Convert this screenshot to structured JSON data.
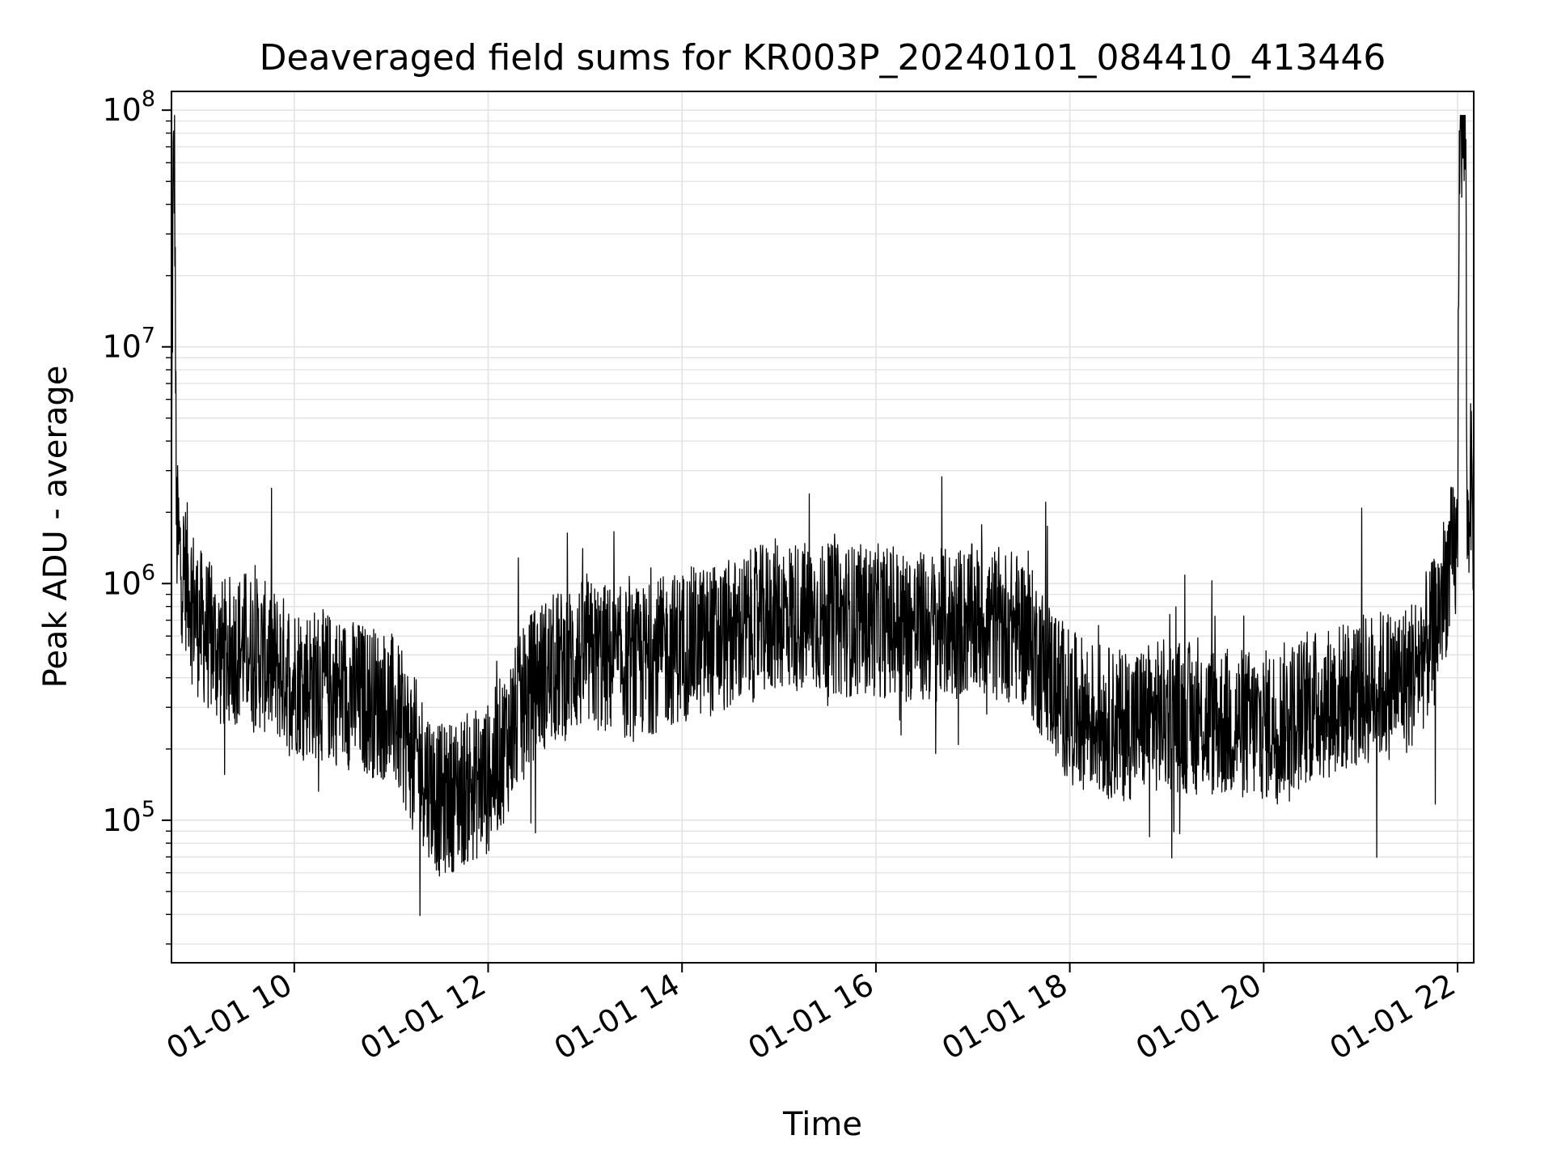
{
  "chart_data": {
    "type": "line",
    "title": "Deaveraged field sums for KR003P_20240101_084410_413446",
    "xlabel": "Time",
    "ylabel": "Peak ADU - average",
    "yscale": "log",
    "xlim": [
      "2024-01-01T08:44",
      "2024-01-01T22:10"
    ],
    "ylim": [
      25000,
      120000000
    ],
    "grid": "on",
    "line_color": "#000000",
    "x_ticks": [
      {
        "label": "01-01 10",
        "value": "2024-01-01T10:00"
      },
      {
        "label": "01-01 12",
        "value": "2024-01-01T12:00"
      },
      {
        "label": "01-01 14",
        "value": "2024-01-01T14:00"
      },
      {
        "label": "01-01 16",
        "value": "2024-01-01T16:00"
      },
      {
        "label": "01-01 18",
        "value": "2024-01-01T18:00"
      },
      {
        "label": "01-01 20",
        "value": "2024-01-01T20:00"
      },
      {
        "label": "01-01 22",
        "value": "2024-01-01T22:00"
      }
    ],
    "y_ticks": [
      {
        "base": "10",
        "exp": "5",
        "value": 100000
      },
      {
        "base": "10",
        "exp": "6",
        "value": 1000000
      },
      {
        "base": "10",
        "exp": "7",
        "value": 10000000
      },
      {
        "base": "10",
        "exp": "8",
        "value": 100000000
      }
    ],
    "series": [
      {
        "x": [
          "2024-01-01T08:44",
          "2024-01-01T08:45",
          "2024-01-01T08:46",
          "2024-01-01T08:47",
          "2024-01-01T08:48",
          "2024-01-01T08:50",
          "2024-01-01T08:55",
          "2024-01-01T09:00",
          "2024-01-01T09:15",
          "2024-01-01T09:30",
          "2024-01-01T10:00",
          "2024-01-01T10:30",
          "2024-01-01T11:00",
          "2024-01-01T11:30",
          "2024-01-01T12:00",
          "2024-01-01T12:30",
          "2024-01-01T13:00",
          "2024-01-01T13:30",
          "2024-01-01T14:00",
          "2024-01-01T14:30",
          "2024-01-01T15:00",
          "2024-01-01T15:30",
          "2024-01-01T16:00",
          "2024-01-01T16:30",
          "2024-01-01T17:00",
          "2024-01-01T17:30",
          "2024-01-01T18:00",
          "2024-01-01T18:30",
          "2024-01-01T19:00",
          "2024-01-01T19:30",
          "2024-01-01T20:00",
          "2024-01-01T20:30",
          "2024-01-01T21:00",
          "2024-01-01T21:30",
          "2024-01-01T21:45",
          "2024-01-01T21:55",
          "2024-01-01T22:00",
          "2024-01-01T22:01",
          "2024-01-01T22:03",
          "2024-01-01T22:05",
          "2024-01-01T22:06",
          "2024-01-01T22:08",
          "2024-01-01T22:10"
        ],
        "y": [
          2000000,
          50000000,
          60000000,
          1800000,
          1500000,
          1200000,
          1000000,
          700000,
          500000,
          550000,
          400000,
          350000,
          300000,
          120000,
          150000,
          400000,
          500000,
          450000,
          550000,
          600000,
          750000,
          700000,
          700000,
          650000,
          700000,
          650000,
          300000,
          250000,
          280000,
          260000,
          250000,
          300000,
          350000,
          400000,
          600000,
          1200000,
          1400000,
          85000000,
          80000000,
          75000000,
          1500000,
          3000000,
          1600000
        ]
      }
    ]
  }
}
